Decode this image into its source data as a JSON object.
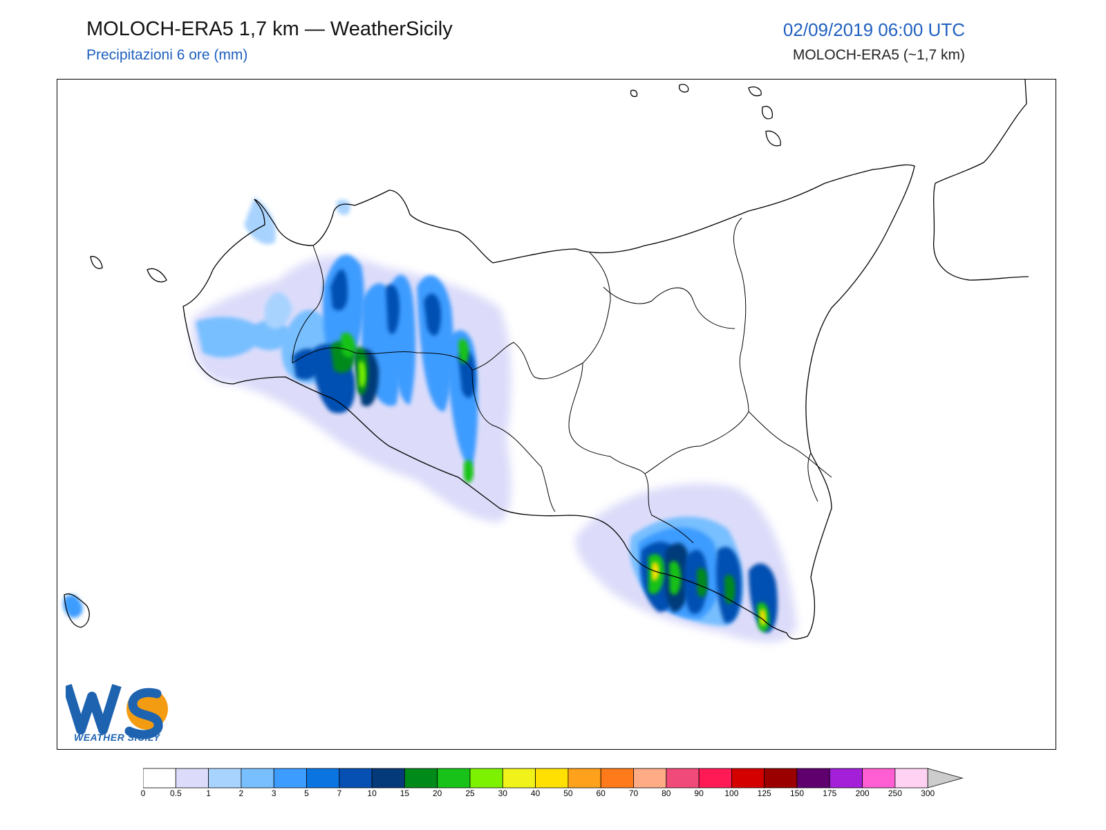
{
  "header": {
    "title": "MOLOCH-ERA5 1,7 km — WeatherSicily",
    "subtitle": "Precipitazioni 6 ore (mm)",
    "datetime": "02/09/2019 06:00 UTC",
    "model_resolution": "MOLOCH-ERA5 (~1,7 km)"
  },
  "logo": {
    "letters": "WS",
    "caption": "WEATHER SICILY",
    "colors": {
      "primary": "#1e63b0",
      "accent": "#f39c12"
    }
  },
  "legend": {
    "unit": "mm",
    "ticks": [
      "0",
      "0.5",
      "1",
      "2",
      "3",
      "5",
      "7",
      "10",
      "15",
      "20",
      "25",
      "30",
      "40",
      "50",
      "60",
      "70",
      "80",
      "90",
      "100",
      "125",
      "150",
      "175",
      "200",
      "250",
      "300"
    ],
    "colors": [
      "#ffffff",
      "#dcdcfa",
      "#a9d3ff",
      "#78bfff",
      "#3d9cff",
      "#0a74e0",
      "#0550b2",
      "#053a7a",
      "#008a1a",
      "#18c218",
      "#7df200",
      "#f0f21a",
      "#ffe000",
      "#ffa11a",
      "#ff7a1a",
      "#ffab86",
      "#f04a7a",
      "#ff1a55",
      "#d40000",
      "#9b0000",
      "#5f006e",
      "#a41fd8",
      "#ff5fd2",
      "#ffd1f2"
    ],
    "overflow_color": "#cccccc"
  }
}
